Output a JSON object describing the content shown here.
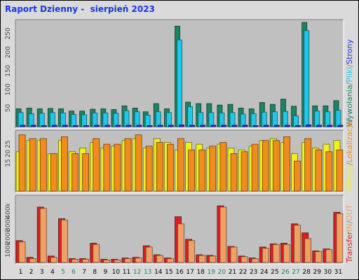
{
  "chart_data": {
    "title": "Raport Dzienny -  sierpień 2023",
    "type": "bar",
    "categories": [
      "1",
      "2",
      "3",
      "4",
      "5",
      "6",
      "7",
      "8",
      "9",
      "10",
      "11",
      "12",
      "13",
      "14",
      "15",
      "16",
      "17",
      "18",
      "19",
      "20",
      "21",
      "22",
      "23",
      "24",
      "25",
      "26",
      "27",
      "28",
      "29",
      "30",
      "31"
    ],
    "weekend_categories": [
      "5",
      "6",
      "12",
      "13",
      "19",
      "20",
      "26",
      "27"
    ],
    "colors": {
      "wywolania": "#1e8264",
      "pliki": "#1ec8e6",
      "strony": "#1e32dc",
      "wizyty": "#f0f01e",
      "lokalizacje": "#f08c1e",
      "transfer_in": "#dc1e1e",
      "transfer_out": "#f0a064",
      "weekend_label": "#1e8264",
      "weekday_label": "#000000",
      "panel_bg": "#c0c0c0",
      "title": "#1a33e6"
    },
    "panels": [
      {
        "id": "hits",
        "yticks": [
          "50",
          "100",
          "150",
          "200",
          "250"
        ],
        "ylim": [
          0,
          280
        ],
        "legend": [
          {
            "text": "Wywołania",
            "color": "#1e8264"
          },
          {
            "text": "/",
            "color": "#888888"
          },
          {
            "text": "Pliki",
            "color": "#1ec8e6"
          },
          {
            "text": "/",
            "color": "#888888"
          },
          {
            "text": "Strony",
            "color": "#1e32dc"
          }
        ],
        "series": [
          {
            "name": "Wywołania",
            "values": [
              48,
              50,
              48,
              49,
              48,
              42,
              42,
              47,
              48,
              46,
              56,
              50,
              40,
              62,
              48,
              270,
              66,
              62,
              62,
              58,
              60,
              50,
              48,
              65,
              60,
              74,
              55,
              280,
              56,
              56,
              70
            ]
          },
          {
            "name": "Pliki",
            "values": [
              38,
              35,
              36,
              38,
              37,
              33,
              32,
              37,
              37,
              36,
              43,
              40,
              31,
              40,
              38,
              233,
              54,
              38,
              38,
              37,
              38,
              34,
              35,
              39,
              40,
              41,
              29,
              258,
              42,
              40,
              44
            ]
          },
          {
            "name": "Strony",
            "values": [
              4,
              4,
              3,
              4,
              4,
              3,
              3,
              4,
              4,
              4,
              4,
              4,
              3,
              4,
              4,
              5,
              4,
              4,
              4,
              4,
              4,
              4,
              3,
              4,
              4,
              4,
              3,
              5,
              4,
              4,
              4
            ]
          }
        ]
      },
      {
        "id": "visits",
        "yticks": [
          "15",
          "20",
          "25"
        ],
        "ylim": [
          0,
          31
        ],
        "legend": [
          {
            "text": "Wizyty",
            "color": "#f0f01e"
          },
          {
            "text": "/",
            "color": "#888888"
          },
          {
            "text": "Lokalizacje",
            "color": "#f08c1e"
          },
          {
            "text": "/",
            "color": "#888888"
          }
        ],
        "series": [
          {
            "name": "Wizyty",
            "values": [
              21,
              27,
              27,
              20,
              27,
              21,
              23,
              26,
              23,
              24,
              27,
              28,
              23,
              28,
              26,
              22,
              26,
              25,
              23,
              25,
              23,
              22,
              24,
              27,
              28,
              26,
              20,
              26,
              23,
              25,
              27
            ]
          },
          {
            "name": "Lokalizacje",
            "values": [
              30,
              28,
              28,
              20,
              29,
              20,
              20,
              28,
              25,
              25,
              28,
              30,
              24,
              26,
              25,
              28,
              22,
              22,
              24,
              26,
              20,
              21,
              25,
              27,
              27,
              29,
              16,
              28,
              22,
              21,
              22
            ]
          }
        ]
      },
      {
        "id": "transfer",
        "yticks": [
          "100k",
          "200k",
          "300k",
          "400k"
        ],
        "ylim": [
          0,
          500
        ],
        "legend": [
          {
            "text": "Transfer",
            "color": "#dc1e1e"
          },
          {
            "text": "IN",
            "color": "#f0a064"
          },
          {
            "text": "/",
            "color": "#888888"
          },
          {
            "text": "OUT",
            "color": "#f0a064"
          }
        ],
        "series": [
          {
            "name": "IN",
            "values": [
              170,
              40,
              430,
              50,
              340,
              30,
              30,
              150,
              25,
              25,
              35,
              40,
              130,
              60,
              35,
              355,
              180,
              60,
              55,
              440,
              125,
              50,
              35,
              120,
              145,
              150,
              300,
              230,
              90,
              105,
              390
            ]
          },
          {
            "name": "OUT",
            "values": [
              160,
              30,
              420,
              40,
              330,
              25,
              25,
              140,
              20,
              20,
              30,
              35,
              120,
              55,
              30,
              300,
              170,
              55,
              50,
              430,
              120,
              45,
              30,
              110,
              140,
              140,
              290,
              185,
              85,
              100,
              380
            ]
          }
        ]
      }
    ]
  }
}
